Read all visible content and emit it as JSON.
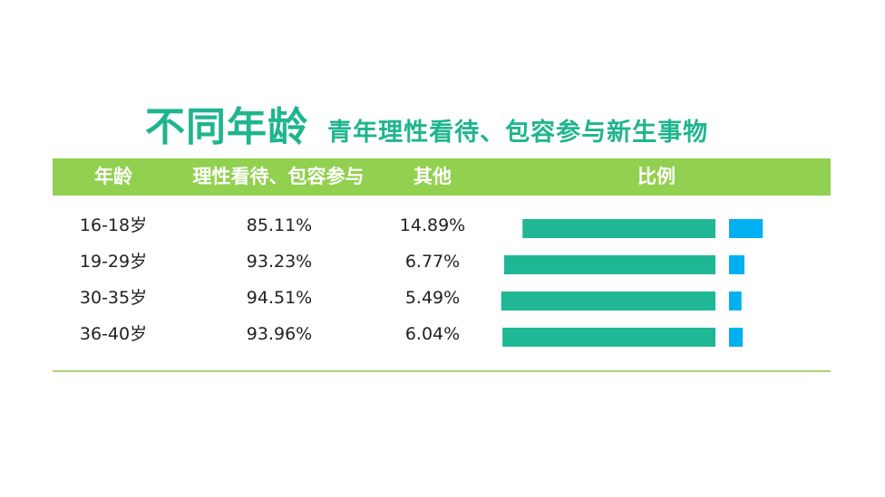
{
  "title": {
    "main": "不同年龄",
    "sub": "青年理性看待、包容参与新生事物"
  },
  "table": {
    "headers": [
      "年龄",
      "理性看待、包容参与",
      "其他",
      "比例"
    ],
    "rows": [
      {
        "age": "16-18岁",
        "rational": "85.11%",
        "other": "14.89%"
      },
      {
        "age": "19-29岁",
        "rational": "93.23%",
        "other": "6.77%"
      },
      {
        "age": "30-35岁",
        "rational": "94.51%",
        "other": "5.49%"
      },
      {
        "age": "36-40岁",
        "rational": "93.96%",
        "other": "6.04%"
      }
    ]
  },
  "colors": {
    "title": "#1fb58e",
    "header_bg": "#92d050",
    "bar_rational": "#20b795",
    "bar_other": "#00b0f0",
    "divider": "#a9d47a"
  },
  "chart_data": {
    "type": "bar",
    "categories": [
      "16-18岁",
      "19-29岁",
      "30-35岁",
      "36-40岁"
    ],
    "series": [
      {
        "name": "理性看待、包容参与",
        "values": [
          85.11,
          93.23,
          94.51,
          93.96
        ]
      },
      {
        "name": "其他",
        "values": [
          14.89,
          6.77,
          5.49,
          6.04
        ]
      }
    ],
    "unit": "%",
    "xlim": [
      0,
      100
    ],
    "orientation": "horizontal",
    "layout": "diverging",
    "legend": "none",
    "grid": false
  }
}
